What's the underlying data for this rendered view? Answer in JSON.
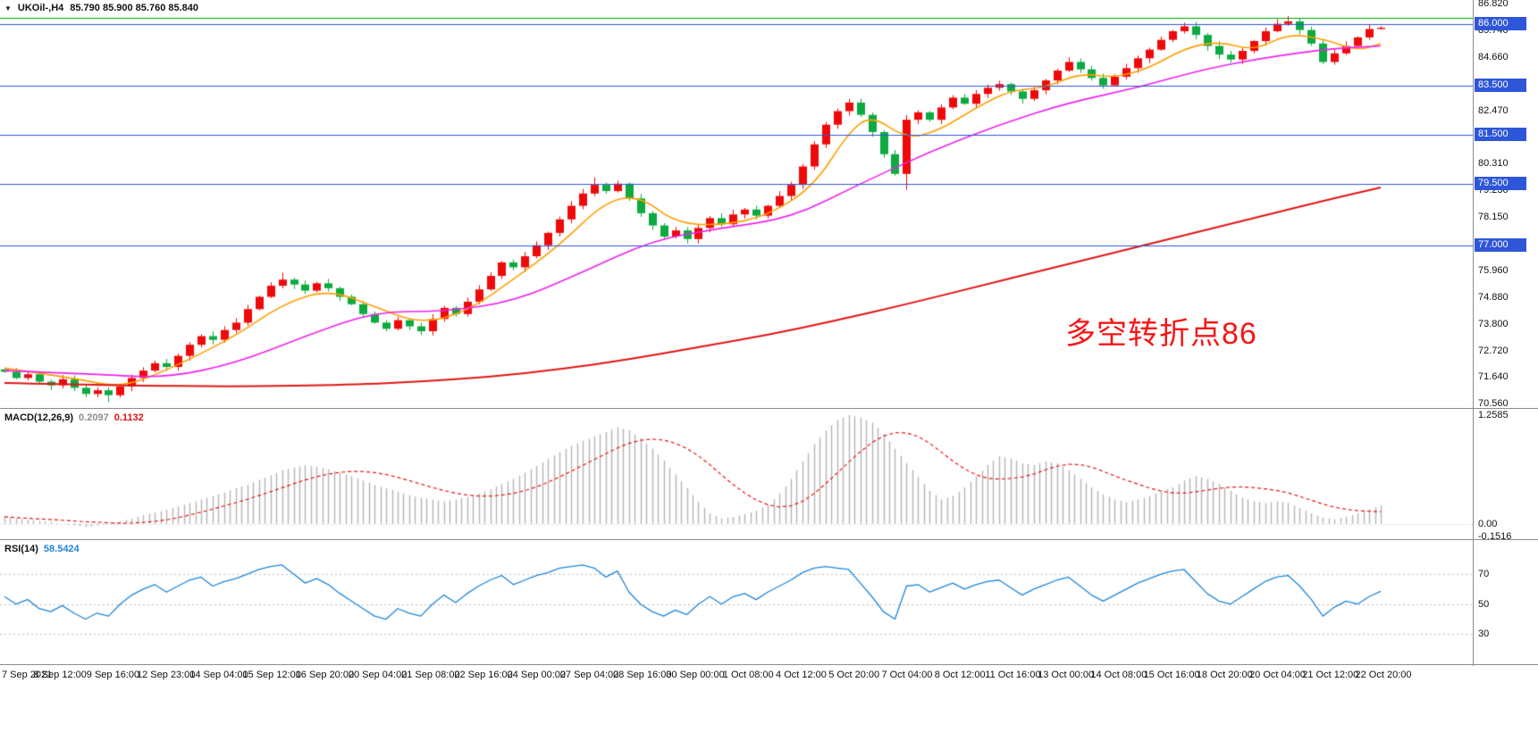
{
  "icons": {
    "symbol_dropdown": "▼"
  },
  "chart_data": [
    {
      "type": "candlestick",
      "symbol_label": "UKOil-,H4",
      "ohlc_display": "85.790 85.900 85.760 85.840",
      "annotation": {
        "text": "多空转折点86",
        "color": "#f71616"
      },
      "ylim": [
        70.38,
        86.97
      ],
      "up_color": "#ee0a0a",
      "down_color": "#0caa40",
      "closes": [
        71.85,
        71.6,
        71.75,
        71.45,
        71.3,
        71.55,
        71.2,
        70.95,
        71.1,
        70.9,
        71.25,
        71.6,
        71.9,
        72.2,
        72.05,
        72.5,
        72.95,
        73.3,
        73.15,
        73.55,
        73.85,
        74.4,
        74.9,
        75.35,
        75.6,
        75.4,
        75.15,
        75.45,
        75.25,
        74.9,
        74.6,
        74.2,
        73.85,
        73.6,
        73.95,
        73.7,
        73.5,
        74.0,
        74.45,
        74.2,
        74.7,
        75.2,
        75.75,
        76.3,
        76.1,
        76.55,
        77.0,
        77.5,
        78.05,
        78.6,
        79.1,
        79.45,
        79.2,
        79.5,
        78.9,
        78.3,
        77.8,
        77.35,
        77.6,
        77.25,
        77.7,
        78.1,
        77.85,
        78.25,
        78.45,
        78.2,
        78.6,
        79.0,
        79.45,
        80.2,
        81.1,
        81.9,
        82.45,
        82.8,
        82.3,
        81.6,
        80.7,
        79.9,
        82.1,
        82.4,
        82.1,
        82.6,
        83.0,
        82.75,
        83.15,
        83.4,
        83.55,
        83.25,
        82.95,
        83.3,
        83.7,
        84.1,
        84.45,
        84.15,
        83.8,
        83.5,
        83.85,
        84.2,
        84.6,
        84.95,
        85.35,
        85.7,
        85.9,
        85.55,
        85.1,
        84.75,
        84.55,
        84.9,
        85.3,
        85.7,
        86.0,
        86.1,
        85.75,
        85.2,
        84.45,
        84.8,
        85.1,
        85.45,
        85.79,
        85.84
      ],
      "wick_overrides": {
        "9": {
          "low": 70.62
        },
        "24": {
          "high": 75.88
        },
        "51": {
          "high": 79.75
        },
        "73": {
          "high": 82.95
        },
        "78": {
          "low": 79.25
        },
        "102": {
          "high": 86.05
        },
        "111": {
          "high": 86.32
        },
        "119": {
          "high": 85.9,
          "low": 85.76
        }
      },
      "moving_averages": [
        {
          "name": "fast-ma",
          "color": "#ff9f00",
          "points": [
            [
              0,
              72.0
            ],
            [
              6,
              71.6
            ],
            [
              10,
              71.2
            ],
            [
              14,
              71.9
            ],
            [
              20,
              73.3
            ],
            [
              24,
              74.6
            ],
            [
              28,
              75.2
            ],
            [
              32,
              74.5
            ],
            [
              36,
              73.8
            ],
            [
              40,
              74.3
            ],
            [
              44,
              75.6
            ],
            [
              48,
              77.0
            ],
            [
              52,
              78.8
            ],
            [
              55,
              79.0
            ],
            [
              58,
              77.9
            ],
            [
              62,
              77.8
            ],
            [
              66,
              78.2
            ],
            [
              70,
              79.4
            ],
            [
              73,
              81.6
            ],
            [
              75,
              82.3
            ],
            [
              78,
              81.3
            ],
            [
              81,
              81.7
            ],
            [
              84,
              82.6
            ],
            [
              87,
              83.3
            ],
            [
              90,
              83.4
            ],
            [
              93,
              84.0
            ],
            [
              96,
              83.8
            ],
            [
              99,
              84.2
            ],
            [
              102,
              85.0
            ],
            [
              105,
              85.3
            ],
            [
              108,
              84.9
            ],
            [
              111,
              85.6
            ],
            [
              114,
              85.4
            ],
            [
              117,
              84.9
            ],
            [
              119,
              85.2
            ]
          ]
        },
        {
          "name": "medium-ma",
          "color": "#ee22ee",
          "points": [
            [
              0,
              71.9
            ],
            [
              8,
              71.75
            ],
            [
              14,
              71.6
            ],
            [
              20,
              72.2
            ],
            [
              26,
              73.3
            ],
            [
              32,
              74.3
            ],
            [
              38,
              74.3
            ],
            [
              44,
              74.7
            ],
            [
              50,
              75.9
            ],
            [
              56,
              77.2
            ],
            [
              62,
              77.7
            ],
            [
              68,
              78.1
            ],
            [
              74,
              79.5
            ],
            [
              80,
              80.8
            ],
            [
              86,
              81.9
            ],
            [
              92,
              82.8
            ],
            [
              98,
              83.4
            ],
            [
              104,
              84.2
            ],
            [
              110,
              84.7
            ],
            [
              115,
              85.0
            ],
            [
              119,
              85.1
            ]
          ]
        },
        {
          "name": "slow-ma",
          "color": "#e01515",
          "points": [
            [
              0,
              71.4
            ],
            [
              10,
              71.3
            ],
            [
              20,
              71.25
            ],
            [
              30,
              71.32
            ],
            [
              36,
              71.45
            ],
            [
              42,
              71.65
            ],
            [
              48,
              71.95
            ],
            [
              54,
              72.35
            ],
            [
              60,
              72.85
            ],
            [
              66,
              73.35
            ],
            [
              72,
              73.95
            ],
            [
              78,
              74.6
            ],
            [
              84,
              75.3
            ],
            [
              90,
              76.0
            ],
            [
              96,
              76.7
            ],
            [
              102,
              77.4
            ],
            [
              108,
              78.1
            ],
            [
              114,
              78.8
            ],
            [
              119,
              79.35
            ]
          ]
        }
      ],
      "horizontal_lines": [
        {
          "price": 86.25,
          "color": "#00a000",
          "label": null
        },
        {
          "price": 86.0,
          "color": "#2e56d8",
          "label": "86.000"
        },
        {
          "price": 83.5,
          "color": "#2e56d8",
          "label": "83.500"
        },
        {
          "price": 81.5,
          "color": "#2e56d8",
          "label": "81.500"
        },
        {
          "price": 79.5,
          "color": "#2e56d8",
          "label": "79.500"
        },
        {
          "price": 77.0,
          "color": "#2e56d8",
          "label": "77.000"
        }
      ],
      "price_ticks": [
        {
          "value": 86.82,
          "label": "86.820"
        },
        {
          "value": 85.74,
          "label": "85.740"
        },
        {
          "value": 84.66,
          "label": "84.660"
        },
        {
          "value": 83.58,
          "label": "83.580"
        },
        {
          "value": 82.47,
          "label": "82.470"
        },
        {
          "value": 81.39,
          "label": "81.390"
        },
        {
          "value": 80.31,
          "label": "80.310"
        },
        {
          "value": 79.23,
          "label": "79.230"
        },
        {
          "value": 78.15,
          "label": "78.150"
        },
        {
          "value": 77.07,
          "label": "77.070"
        },
        {
          "value": 75.96,
          "label": "75.960"
        },
        {
          "value": 74.88,
          "label": "74.880"
        },
        {
          "value": 73.8,
          "label": "73.800"
        },
        {
          "value": 72.72,
          "label": "72.720"
        },
        {
          "value": 71.64,
          "label": "71.640"
        },
        {
          "value": 70.56,
          "label": "70.560"
        }
      ],
      "time_labels": [
        "7 Sep 2021",
        "8 Sep 12:00",
        "9 Sep 16:00",
        "12 Sep 23:00",
        "14 Sep 04:00",
        "15 Sep 12:00",
        "16 Sep 20:00",
        "20 Sep 04:00",
        "21 Sep 08:00",
        "22 Sep 16:00",
        "24 Sep 00:00",
        "27 Sep 04:00",
        "28 Sep 16:00",
        "30 Sep 00:00",
        "1 Oct 08:00",
        "4 Oct 12:00",
        "5 Oct 20:00",
        "7 Oct 04:00",
        "8 Oct 12:00",
        "11 Oct 16:00",
        "13 Oct 00:00",
        "14 Oct 08:00",
        "15 Oct 16:00",
        "18 Oct 20:00",
        "20 Oct 04:00",
        "21 Oct 12:00",
        "22 Oct 20:00"
      ]
    },
    {
      "type": "bar",
      "name": "MACD",
      "label": "MACD(12,26,9)",
      "value_main": "0.2097",
      "value_signal": "0.1132",
      "ylim": [
        -0.18,
        1.32
      ],
      "histogram_color": "#b4b4b4",
      "signal_color": "#e81717",
      "axis_ticks": [
        {
          "value": 1.2585,
          "label": "1.2585"
        },
        {
          "value": 0,
          "label": "0.00"
        },
        {
          "value": -0.1516,
          "label": "-0.1516"
        }
      ],
      "histogram": [
        0.08,
        0.06,
        0.05,
        0.03,
        0.02,
        0.0,
        -0.02,
        -0.04,
        -0.02,
        0.0,
        0.03,
        0.06,
        0.1,
        0.13,
        0.16,
        0.2,
        0.24,
        0.28,
        0.32,
        0.36,
        0.41,
        0.45,
        0.51,
        0.56,
        0.62,
        0.65,
        0.68,
        0.66,
        0.63,
        0.59,
        0.55,
        0.5,
        0.45,
        0.41,
        0.37,
        0.33,
        0.3,
        0.28,
        0.26,
        0.28,
        0.31,
        0.35,
        0.4,
        0.46,
        0.52,
        0.59,
        0.67,
        0.75,
        0.83,
        0.9,
        0.96,
        1.01,
        1.06,
        1.12,
        1.08,
        0.99,
        0.87,
        0.73,
        0.57,
        0.41,
        0.25,
        0.12,
        0.06,
        0.08,
        0.11,
        0.15,
        0.22,
        0.35,
        0.52,
        0.72,
        0.92,
        1.08,
        1.2,
        1.2585,
        1.23,
        1.17,
        1.04,
        0.87,
        0.7,
        0.54,
        0.38,
        0.28,
        0.32,
        0.42,
        0.55,
        0.68,
        0.78,
        0.76,
        0.7,
        0.68,
        0.72,
        0.7,
        0.62,
        0.52,
        0.42,
        0.34,
        0.28,
        0.25,
        0.28,
        0.32,
        0.38,
        0.42,
        0.5,
        0.55,
        0.52,
        0.46,
        0.38,
        0.3,
        0.26,
        0.24,
        0.26,
        0.24,
        0.18,
        0.12,
        0.07,
        0.05,
        0.08,
        0.12,
        0.17,
        0.21
      ],
      "signal_period": 9
    },
    {
      "type": "line",
      "name": "RSI",
      "label": "RSI(14)",
      "value": "58.5424",
      "ylim": [
        10,
        92
      ],
      "line_color": "#1f86d8",
      "levels": [
        70,
        50,
        30
      ],
      "axis_ticks": [
        {
          "value": 70,
          "label": "70"
        },
        {
          "value": 50,
          "label": "50"
        },
        {
          "value": 30,
          "label": "30"
        }
      ],
      "values": [
        55,
        50,
        53,
        47,
        45,
        49,
        44,
        40,
        44,
        42,
        50,
        56,
        60,
        63,
        58,
        62,
        66,
        68,
        62,
        65,
        67,
        70,
        73,
        75,
        76,
        70,
        64,
        67,
        63,
        57,
        52,
        47,
        42,
        40,
        47,
        44,
        42,
        50,
        56,
        51,
        57,
        62,
        66,
        69,
        63,
        66,
        69,
        71,
        74,
        75,
        76,
        74,
        68,
        72,
        58,
        50,
        45,
        42,
        46,
        43,
        50,
        55,
        50,
        55,
        57,
        53,
        58,
        62,
        66,
        71,
        74,
        75,
        74,
        73,
        64,
        55,
        45,
        40,
        62,
        63,
        58,
        61,
        64,
        60,
        63,
        65,
        66,
        61,
        56,
        60,
        63,
        66,
        68,
        62,
        56,
        52,
        56,
        60,
        64,
        67,
        70,
        72,
        73,
        65,
        57,
        52,
        50,
        55,
        60,
        65,
        68,
        69,
        62,
        53,
        42,
        48,
        52,
        50,
        55,
        58.54
      ]
    }
  ]
}
